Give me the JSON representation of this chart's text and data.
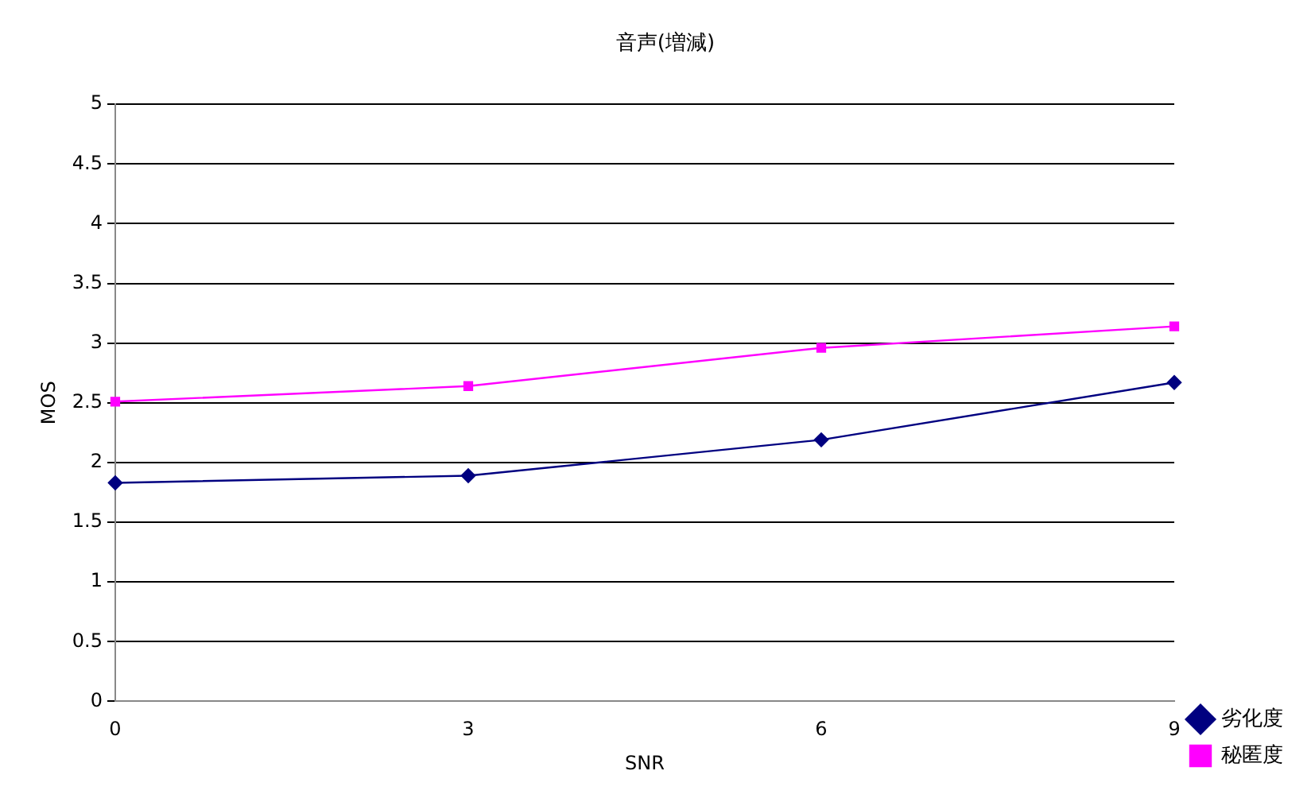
{
  "chart_data": {
    "type": "line",
    "title": "音声(増減)",
    "xlabel": "SNR",
    "ylabel": "MOS",
    "categories": [
      "0",
      "3",
      "6",
      "9"
    ],
    "series": [
      {
        "name": "劣化度",
        "color": "#000080",
        "values": [
          1.83,
          1.89,
          2.19,
          2.67
        ],
        "marker": "diamond"
      },
      {
        "name": "秘匿度",
        "color": "#ff00ff",
        "values": [
          2.51,
          2.64,
          2.96,
          3.14
        ],
        "marker": "square"
      }
    ],
    "ylim": [
      0,
      5
    ],
    "yticks": [
      0,
      0.5,
      1,
      1.5,
      2,
      2.5,
      3,
      3.5,
      4,
      4.5,
      5
    ],
    "grid": "y",
    "legend": "bottom right",
    "line_style": "solid"
  }
}
